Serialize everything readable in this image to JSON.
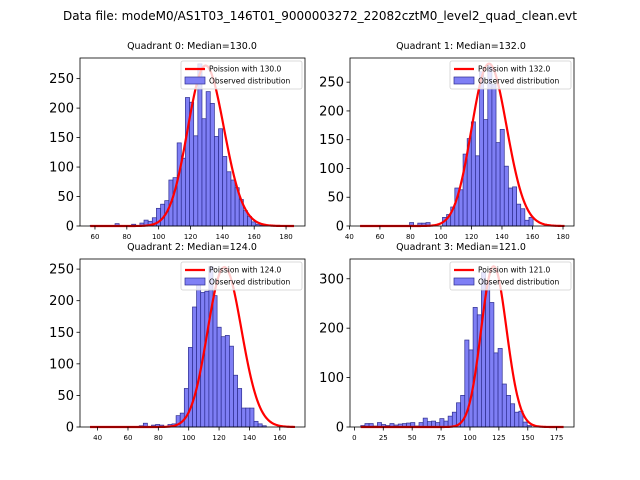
{
  "suptitle": "Data file: modeM0/AS1T03_146T01_9000003272_22082cztM0_level2_quad_clean.evt",
  "chart_data": [
    {
      "type": "bar",
      "title": "Quadrant 0: Median=130.0",
      "xlabel": "",
      "ylabel": "",
      "xlim": [
        50.6,
        191.9
      ],
      "ylim": [
        0,
        285
      ],
      "xticks": [
        60,
        80,
        100,
        120,
        140,
        160,
        180
      ],
      "yticks": [
        0,
        50,
        100,
        150,
        200,
        250
      ],
      "bin_start": 57,
      "bin_width": 2.6,
      "values": [
        1,
        0,
        0,
        0,
        0,
        0,
        4,
        0,
        1,
        0,
        3,
        0,
        5,
        10,
        8,
        14,
        30,
        37,
        43,
        78,
        82,
        141,
        115,
        218,
        210,
        153,
        275,
        182,
        228,
        208,
        152,
        165,
        118,
        92,
        78,
        65,
        45,
        26,
        16,
        7,
        3,
        1,
        1,
        0,
        0,
        0,
        0,
        0,
        1
      ],
      "poisson": {
        "lambda": 130.0,
        "label": "Poission with 130.0",
        "x_range": [
          57,
          185
        ],
        "peak": 272
      },
      "legend": {
        "position": "upper right",
        "entries": [
          "Poission with 130.0",
          "Observed distribution"
        ]
      }
    },
    {
      "type": "bar",
      "title": "Quadrant 1: Median=132.0",
      "xlabel": "",
      "ylabel": "",
      "xlim": [
        40.4,
        187.2
      ],
      "ylim": [
        0,
        292
      ],
      "xticks": [
        40,
        60,
        80,
        100,
        120,
        140,
        160,
        180
      ],
      "yticks": [
        0,
        50,
        100,
        150,
        200,
        250
      ],
      "bin_start": 47,
      "bin_width": 2.7,
      "values": [
        0,
        0,
        0,
        0,
        0,
        0,
        0,
        0,
        0,
        0,
        0,
        0,
        6,
        0,
        5,
        5,
        6,
        0,
        0,
        0,
        15,
        20,
        33,
        66,
        63,
        125,
        152,
        181,
        122,
        268,
        185,
        278,
        246,
        145,
        168,
        104,
        66,
        68,
        38,
        30,
        10,
        15,
        0,
        0,
        0,
        0,
        0,
        0,
        0,
        0
      ],
      "poisson": {
        "lambda": 132.0,
        "label": "Poission with 132.0",
        "x_range": [
          47,
          181
        ],
        "peak": 282
      },
      "legend": {
        "position": "upper right",
        "entries": [
          "Poission with 132.0",
          "Observed distribution"
        ]
      }
    },
    {
      "type": "bar",
      "title": "Quadrant 2: Median=124.0",
      "xlabel": "",
      "ylabel": "",
      "xlim": [
        28.4,
        176.6
      ],
      "ylim": [
        0,
        266
      ],
      "xticks": [
        40,
        60,
        80,
        100,
        120,
        140,
        160
      ],
      "yticks": [
        0,
        50,
        100,
        150,
        200,
        250
      ],
      "bin_start": 35,
      "bin_width": 2.7,
      "values": [
        0,
        0,
        0,
        0,
        0,
        0,
        0,
        0,
        0,
        0,
        0,
        0,
        2,
        6,
        0,
        3,
        4,
        3,
        0,
        4,
        5,
        18,
        22,
        61,
        126,
        190,
        232,
        213,
        215,
        254,
        208,
        158,
        143,
        145,
        128,
        82,
        61,
        30,
        30,
        30,
        9,
        5,
        2,
        0
      ],
      "poisson": {
        "lambda": 124.0,
        "label": "Poission with 124.0",
        "x_range": [
          35,
          170
        ],
        "peak": 253
      },
      "legend": {
        "position": "upper right",
        "entries": [
          "Poission with 124.0",
          "Observed distribution"
        ]
      }
    },
    {
      "type": "bar",
      "title": "Quadrant 3: Median=121.0",
      "xlabel": "",
      "ylabel": "",
      "xlim": [
        -3.8,
        190.0
      ],
      "ylim": [
        0,
        340
      ],
      "xticks": [
        0,
        25,
        50,
        75,
        100,
        125,
        150,
        175
      ],
      "yticks": [
        0,
        100,
        200,
        300
      ],
      "bin_start": 5.5,
      "bin_width": 3.6,
      "values": [
        3,
        7,
        7,
        2,
        9,
        5,
        3,
        7,
        4,
        6,
        7,
        8,
        9,
        2,
        9,
        18,
        11,
        12,
        9,
        17,
        12,
        22,
        30,
        49,
        64,
        176,
        156,
        242,
        227,
        313,
        293,
        252,
        150,
        159,
        87,
        64,
        47,
        30,
        32,
        10,
        3,
        0,
        0,
        0,
        0,
        0,
        0,
        0,
        0
      ],
      "poisson": {
        "lambda": 121.0,
        "label": "Poission with 121.0",
        "x_range": [
          5.5,
          181
        ],
        "peak": 325
      },
      "legend": {
        "position": "upper right",
        "entries": [
          "Poission with 121.0",
          "Observed distribution"
        ]
      }
    }
  ],
  "colors": {
    "bar_fill": "#7f7ff5",
    "bar_edge": "#2d2d8f",
    "poisson_line": "#ff0000"
  }
}
